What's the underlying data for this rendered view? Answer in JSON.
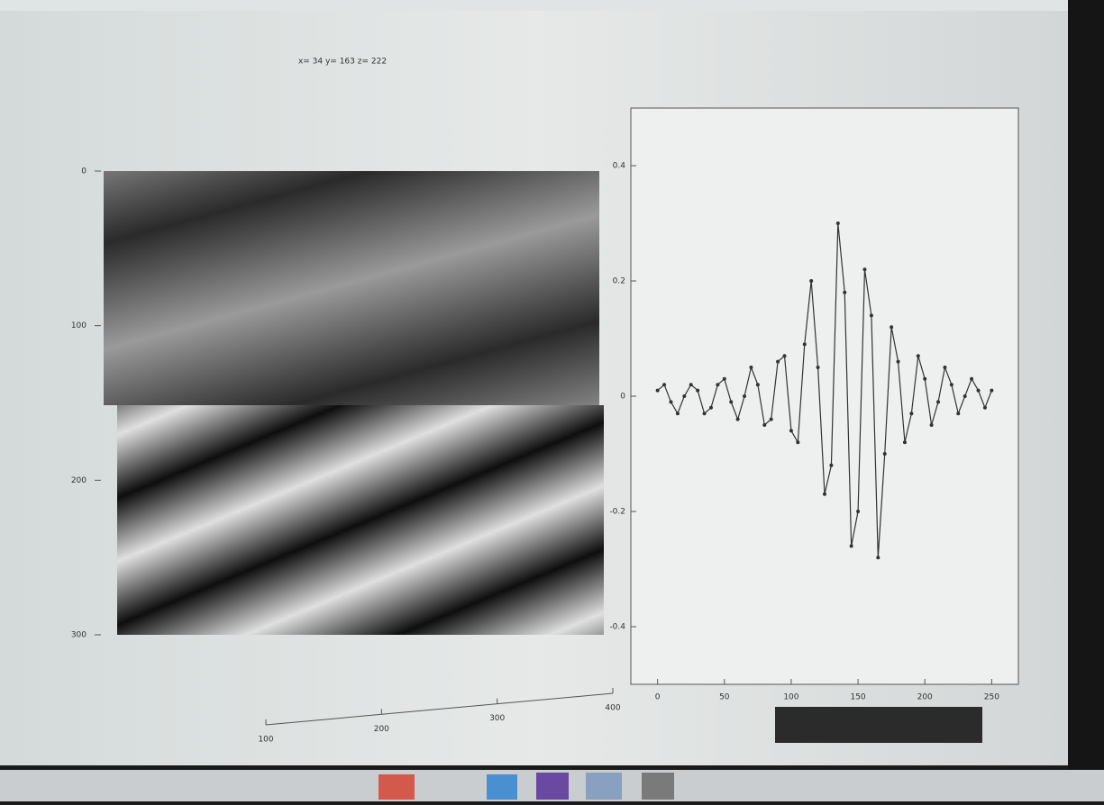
{
  "image_panel": {
    "title": "x= 34   y= 163   z= 222",
    "ylim": [
      0,
      300
    ],
    "yticks": [
      0,
      100,
      200,
      300
    ],
    "y_inverted": true,
    "xlim": [
      100,
      400
    ],
    "xticks": [
      100,
      200,
      300,
      400
    ]
  },
  "chart_data": {
    "type": "line",
    "color": "#333333",
    "x": [
      0,
      5,
      10,
      15,
      20,
      25,
      30,
      35,
      40,
      45,
      50,
      55,
      60,
      65,
      70,
      75,
      80,
      85,
      90,
      95,
      100,
      105,
      110,
      115,
      120,
      125,
      130,
      135,
      140,
      145,
      150,
      155,
      160,
      165,
      170,
      175,
      180,
      185,
      190,
      195,
      200,
      205,
      210,
      215,
      220,
      225,
      230,
      235,
      240,
      245,
      250
    ],
    "values": [
      0.01,
      0.02,
      -0.01,
      -0.03,
      0.0,
      0.02,
      0.01,
      -0.03,
      -0.02,
      0.02,
      0.03,
      -0.01,
      -0.04,
      0.0,
      0.05,
      0.02,
      -0.05,
      -0.04,
      0.06,
      0.07,
      -0.06,
      -0.08,
      0.09,
      0.2,
      0.05,
      -0.17,
      -0.12,
      0.3,
      0.18,
      -0.26,
      -0.2,
      0.22,
      0.14,
      -0.28,
      -0.1,
      0.12,
      0.06,
      -0.08,
      -0.03,
      0.07,
      0.03,
      -0.05,
      -0.01,
      0.05,
      0.02,
      -0.03,
      0.0,
      0.03,
      0.01,
      -0.02,
      0.01
    ],
    "xlim": [
      -20,
      270
    ],
    "xticks": [
      0,
      50,
      100,
      150,
      200,
      250
    ],
    "ylim": [
      -0.5,
      0.5
    ],
    "yticks": [
      -0.4,
      -0.2,
      0,
      0.2,
      0.4
    ]
  }
}
